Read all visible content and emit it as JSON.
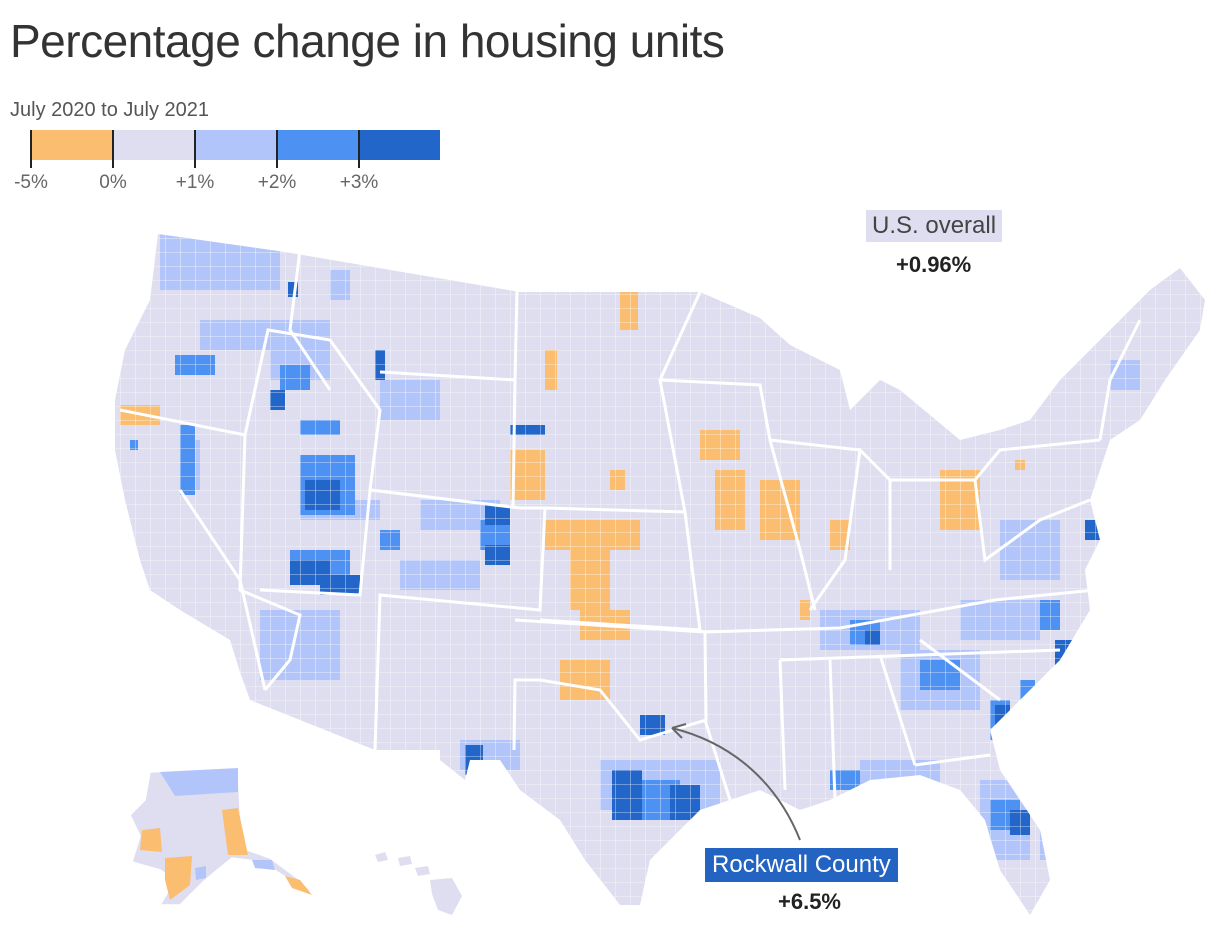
{
  "title": "Percentage change in housing units",
  "subtitle": "July 2020 to July 2021",
  "legend": {
    "bins": [
      {
        "from": -5,
        "to": 0,
        "color": "#fbbd6f"
      },
      {
        "from": 0,
        "to": 1,
        "color": "#dedef0"
      },
      {
        "from": 1,
        "to": 2,
        "color": "#b2c5fb"
      },
      {
        "from": 2,
        "to": 3,
        "color": "#4d91f2"
      },
      {
        "from": 3,
        "to": null,
        "color": "#2266c9"
      }
    ],
    "labels": [
      "-5%",
      "0%",
      "+1%",
      "+2%",
      "+3%"
    ]
  },
  "annotations": {
    "us_overall": {
      "label": "U.S. overall",
      "value": "+0.96%"
    },
    "highlight": {
      "label": "Rockwall County",
      "value": "+6.5%"
    }
  },
  "colors": {
    "base": "#dedef0",
    "state_border": "#ffffff",
    "decline": "#fbbd6f",
    "light_growth": "#b2c5fb",
    "mid_growth": "#4d91f2",
    "high_growth": "#2266c9",
    "highlight_box": "#2363c2"
  }
}
